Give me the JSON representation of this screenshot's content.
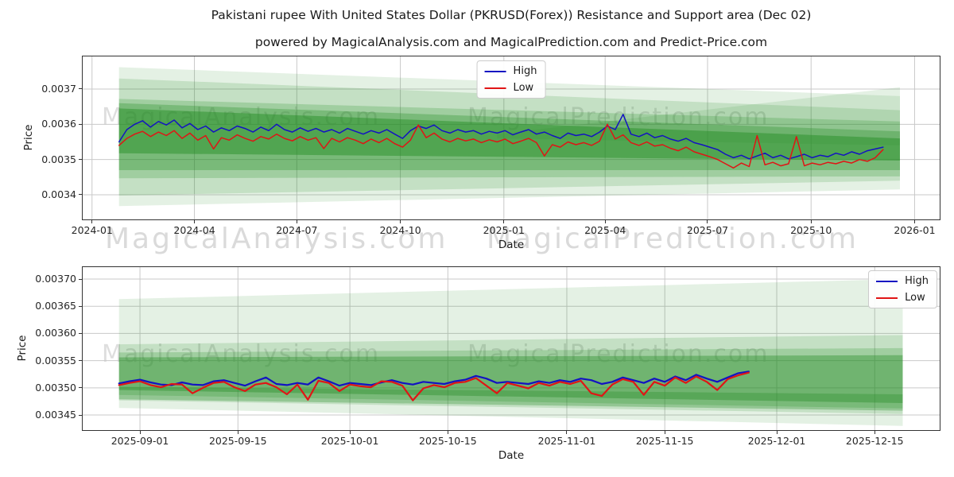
{
  "title": "Pakistani rupee With United States Dollar (PKRUSD(Forex)) Resistance and Support area (Dec 02)",
  "subtitle": "powered by MagicalAnalysis.com and MagicalPrediction.com and Predict-Price.com",
  "watermarks": {
    "analysis": "MagicalAnalysis.com",
    "prediction": "MagicalPrediction.com"
  },
  "colors": {
    "high": "#1313c2",
    "low": "#e01515",
    "band_green": "#228B22",
    "grid": "#c9c9c9",
    "spine": "#333333"
  },
  "chart_data": [
    {
      "name": "pkrusd-full-history",
      "type": "line",
      "xlabel": "Date",
      "ylabel": "Price",
      "x_unit": "days since 2024-01-01",
      "xlim": [
        -9,
        754
      ],
      "ylim": [
        0.0033278,
        0.0037947
      ],
      "grid": true,
      "legend_position": "upper center",
      "unit": 1e-06,
      "line_width": 1.5,
      "xticks": [
        {
          "t": 0,
          "label": "2024-01"
        },
        {
          "t": 91,
          "label": "2024-04"
        },
        {
          "t": 182,
          "label": "2024-07"
        },
        {
          "t": 274,
          "label": "2024-10"
        },
        {
          "t": 366,
          "label": "2025-01"
        },
        {
          "t": 456,
          "label": "2025-04"
        },
        {
          "t": 547,
          "label": "2025-07"
        },
        {
          "t": 639,
          "label": "2025-10"
        },
        {
          "t": 731,
          "label": "2026-01"
        }
      ],
      "yticks": [
        {
          "v": 0.0034,
          "label": "0.0034"
        },
        {
          "v": 0.0035,
          "label": "0.0035"
        },
        {
          "v": 0.0036,
          "label": "0.0036"
        },
        {
          "v": 0.0037,
          "label": "0.0037"
        }
      ],
      "legend": [
        {
          "label": "High",
          "color": "#1313c2"
        },
        {
          "label": "Low",
          "color": "#e01515"
        }
      ],
      "bands": [
        {
          "alpha": 0.12,
          "points": [
            [
              24,
              0.003762
            ],
            [
              718,
              0.00368
            ],
            [
              718,
              0.003415
            ],
            [
              24,
              0.003368
            ]
          ]
        },
        {
          "alpha": 0.12,
          "points": [
            [
              360,
              0.003572
            ],
            [
              718,
              0.003705
            ],
            [
              718,
              0.00354
            ],
            [
              360,
              0.00356
            ]
          ]
        },
        {
          "alpha": 0.16,
          "points": [
            [
              24,
              0.00373
            ],
            [
              718,
              0.00364
            ],
            [
              718,
              0.00344
            ],
            [
              24,
              0.003398
            ]
          ]
        },
        {
          "alpha": 0.22,
          "points": [
            [
              24,
              0.003672
            ],
            [
              718,
              0.003608
            ],
            [
              718,
              0.003452
            ],
            [
              24,
              0.003447
            ]
          ]
        },
        {
          "alpha": 0.3,
          "points": [
            [
              24,
              0.00366
            ],
            [
              718,
              0.00358
            ],
            [
              718,
              0.00347
            ],
            [
              24,
              0.00347
            ]
          ]
        },
        {
          "alpha": 0.45,
          "points": [
            [
              24,
              0.003645
            ],
            [
              718,
              0.00356
            ],
            [
              718,
              0.003497
            ],
            [
              24,
              0.003518
            ]
          ]
        }
      ],
      "series": [
        {
          "name": "High",
          "color": "#1313c2",
          "t_start": 24,
          "t_step": 7,
          "values": [
            3550,
            3585,
            3600,
            3610,
            3592,
            3608,
            3598,
            3612,
            3590,
            3602,
            3585,
            3595,
            3578,
            3590,
            3582,
            3595,
            3588,
            3578,
            3592,
            3582,
            3600,
            3585,
            3578,
            3590,
            3580,
            3588,
            3578,
            3585,
            3575,
            3588,
            3580,
            3572,
            3582,
            3575,
            3585,
            3572,
            3560,
            3582,
            3595,
            3588,
            3598,
            3582,
            3575,
            3585,
            3578,
            3582,
            3572,
            3580,
            3575,
            3582,
            3570,
            3578,
            3585,
            3572,
            3578,
            3568,
            3560,
            3575,
            3568,
            3572,
            3565,
            3578,
            3595,
            3585,
            3628,
            3572,
            3565,
            3575,
            3562,
            3568,
            3558,
            3552,
            3560,
            3548,
            3542,
            3535,
            3528,
            3515,
            3505,
            3512,
            3502,
            3510,
            3518,
            3505,
            3512,
            3502,
            3508,
            3515,
            3505,
            3512,
            3508,
            3518,
            3512,
            3522,
            3515,
            3525,
            3530,
            3535
          ]
        },
        {
          "name": "Low",
          "color": "#e01515",
          "t_start": 24,
          "t_step": 7,
          "values": [
            3540,
            3560,
            3572,
            3580,
            3565,
            3578,
            3568,
            3582,
            3560,
            3575,
            3555,
            3568,
            3530,
            3562,
            3555,
            3570,
            3560,
            3552,
            3565,
            3558,
            3572,
            3560,
            3553,
            3565,
            3555,
            3562,
            3531,
            3560,
            3550,
            3562,
            3555,
            3545,
            3558,
            3548,
            3560,
            3545,
            3535,
            3555,
            3598,
            3562,
            3575,
            3558,
            3550,
            3560,
            3553,
            3558,
            3548,
            3556,
            3550,
            3558,
            3545,
            3552,
            3560,
            3548,
            3510,
            3542,
            3535,
            3550,
            3542,
            3548,
            3540,
            3552,
            3600,
            3558,
            3570,
            3548,
            3540,
            3550,
            3538,
            3542,
            3532,
            3525,
            3535,
            3522,
            3515,
            3508,
            3500,
            3488,
            3476,
            3490,
            3480,
            3568,
            3485,
            3492,
            3482,
            3488,
            3565,
            3482,
            3490,
            3485,
            3492,
            3488,
            3495,
            3490,
            3500,
            3495,
            3505,
            3528
          ]
        }
      ]
    },
    {
      "name": "pkrusd-recent-zoom",
      "type": "line",
      "xlabel": "Date",
      "ylabel": "Price",
      "x_unit": "days since 2025-09-01",
      "xlim": [
        -8.3,
        114.4
      ],
      "ylim": [
        0.0034208,
        0.0037234
      ],
      "grid": true,
      "legend_position": "upper right",
      "unit": 1e-06,
      "line_width": 2.2,
      "xticks": [
        {
          "t": 0,
          "label": "2025-09-01"
        },
        {
          "t": 14,
          "label": "2025-09-15"
        },
        {
          "t": 30,
          "label": "2025-10-01"
        },
        {
          "t": 44,
          "label": "2025-10-15"
        },
        {
          "t": 61,
          "label": "2025-11-01"
        },
        {
          "t": 75,
          "label": "2025-11-15"
        },
        {
          "t": 91,
          "label": "2025-12-01"
        },
        {
          "t": 105,
          "label": "2025-12-15"
        }
      ],
      "yticks": [
        {
          "v": 0.00345,
          "label": "0.00345"
        },
        {
          "v": 0.0035,
          "label": "0.00350"
        },
        {
          "v": 0.00355,
          "label": "0.00355"
        },
        {
          "v": 0.0036,
          "label": "0.00360"
        },
        {
          "v": 0.00365,
          "label": "0.00365"
        },
        {
          "v": 0.0037,
          "label": "0.00370"
        }
      ],
      "legend": [
        {
          "label": "High",
          "color": "#1313c2"
        },
        {
          "label": "Low",
          "color": "#e01515"
        }
      ],
      "bands": [
        {
          "alpha": 0.12,
          "points": [
            [
              -3,
              0.003663
            ],
            [
              109,
              0.0037
            ],
            [
              109,
              0.00343
            ],
            [
              -3,
              0.003463
            ]
          ]
        },
        {
          "alpha": 0.16,
          "points": [
            [
              -3,
              0.00358
            ],
            [
              109,
              0.003597
            ],
            [
              109,
              0.003452
            ],
            [
              -3,
              0.003477
            ]
          ]
        },
        {
          "alpha": 0.22,
          "points": [
            [
              -3,
              0.003565
            ],
            [
              109,
              0.003573
            ],
            [
              109,
              0.003462
            ],
            [
              -3,
              0.003487
            ]
          ]
        },
        {
          "alpha": 0.38,
          "points": [
            [
              -3,
              0.003556
            ],
            [
              109,
              0.00356
            ],
            [
              109,
              0.003472
            ],
            [
              -3,
              0.003496
            ]
          ]
        },
        {
          "alpha": 0.3,
          "points": [
            [
              -3,
              0.003502
            ],
            [
              109,
              0.003488
            ],
            [
              109,
              0.003458
            ],
            [
              -3,
              0.003479
            ]
          ]
        }
      ],
      "series": [
        {
          "name": "High",
          "color": "#1313c2",
          "t_start": -3,
          "t_step": 1.5,
          "values": [
            3508,
            3512,
            3515,
            3510,
            3506,
            3505,
            3510,
            3506,
            3505,
            3512,
            3514,
            3509,
            3504,
            3512,
            3519,
            3507,
            3505,
            3509,
            3506,
            3519,
            3512,
            3504,
            3509,
            3507,
            3505,
            3510,
            3514,
            3509,
            3506,
            3511,
            3509,
            3507,
            3512,
            3515,
            3522,
            3517,
            3509,
            3511,
            3509,
            3507,
            3512,
            3509,
            3514,
            3511,
            3517,
            3514,
            3507,
            3511,
            3519,
            3514,
            3509,
            3517,
            3511,
            3521,
            3514,
            3524,
            3517,
            3511,
            3519,
            3527,
            3530
          ]
        },
        {
          "name": "Low",
          "color": "#e01515",
          "t_start": -3,
          "t_step": 1.5,
          "values": [
            3505,
            3509,
            3512,
            3505,
            3501,
            3507,
            3506,
            3490,
            3500,
            3509,
            3511,
            3501,
            3494,
            3506,
            3509,
            3501,
            3488,
            3506,
            3478,
            3513,
            3509,
            3494,
            3506,
            3503,
            3501,
            3512,
            3511,
            3504,
            3477,
            3499,
            3505,
            3501,
            3509,
            3511,
            3518,
            3504,
            3490,
            3509,
            3504,
            3499,
            3509,
            3504,
            3511,
            3507,
            3513,
            3490,
            3485,
            3506,
            3516,
            3511,
            3487,
            3511,
            3504,
            3519,
            3509,
            3521,
            3511,
            3496,
            3516,
            3523,
            3528
          ]
        }
      ]
    }
  ]
}
